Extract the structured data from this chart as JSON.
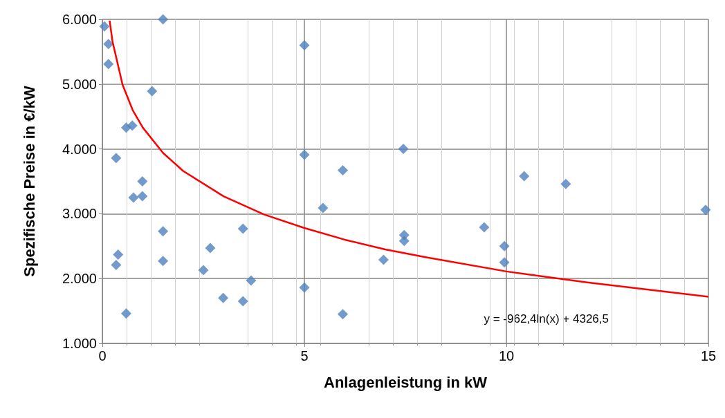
{
  "chart_data": {
    "type": "scatter",
    "xlabel": "Anlagenleistung in kW",
    "ylabel": "Spezifische Preise in €/kW",
    "xlim": [
      0,
      15
    ],
    "xticks": [
      0,
      5,
      10,
      15
    ],
    "ylim": [
      1000,
      6000
    ],
    "yticks": [
      {
        "value": 1000,
        "label": "1.000"
      },
      {
        "value": 2000,
        "label": "2.000"
      },
      {
        "value": 3000,
        "label": "3.000"
      },
      {
        "value": 4000,
        "label": "4.000"
      },
      {
        "value": 5000,
        "label": "5.000"
      },
      {
        "value": 6000,
        "label": "6.000"
      }
    ],
    "grid": true,
    "marker": "diamond",
    "annotations": [
      "y = -962,4ln(x) + 4326,5"
    ],
    "series": [
      {
        "color": "#4f81bd",
        "x": [
          0.05,
          0.15,
          0.15,
          1.5,
          1.23,
          0.59,
          0.74,
          0.34,
          0.99,
          0.77,
          0.99,
          1.5,
          0.39,
          0.34,
          1.5,
          0.59,
          2.67,
          2.5,
          2.99,
          3.48,
          3.48,
          3.68,
          5,
          5,
          5,
          5.46,
          5.95,
          5.95,
          6.96,
          7.45,
          7.47,
          7.47,
          9.45,
          9.95,
          9.95,
          10.44,
          11.47,
          14.93
        ],
        "values": [
          5890,
          5620,
          5310,
          6000,
          4890,
          4330,
          4360,
          3860,
          3500,
          3250,
          3270,
          2730,
          2370,
          2210,
          2270,
          1460,
          2470,
          2130,
          1700,
          2770,
          1650,
          1970,
          5600,
          3910,
          1860,
          3090,
          3670,
          1450,
          2290,
          4000,
          2670,
          2580,
          2790,
          2500,
          2250,
          3580,
          3460,
          3060
        ]
      },
      {
        "type": "line",
        "color": "#ff0000",
        "marker": "none",
        "x": [
          0.18,
          0.25,
          0.5,
          0.75,
          1,
          1.5,
          2,
          3,
          4,
          5,
          6,
          7,
          8,
          10,
          12,
          15
        ],
        "values": [
          5980,
          5660,
          4990,
          4600,
          4330,
          3940,
          3660,
          3270,
          2990,
          2780,
          2600,
          2450,
          2330,
          2110,
          1940,
          1720
        ]
      }
    ]
  }
}
